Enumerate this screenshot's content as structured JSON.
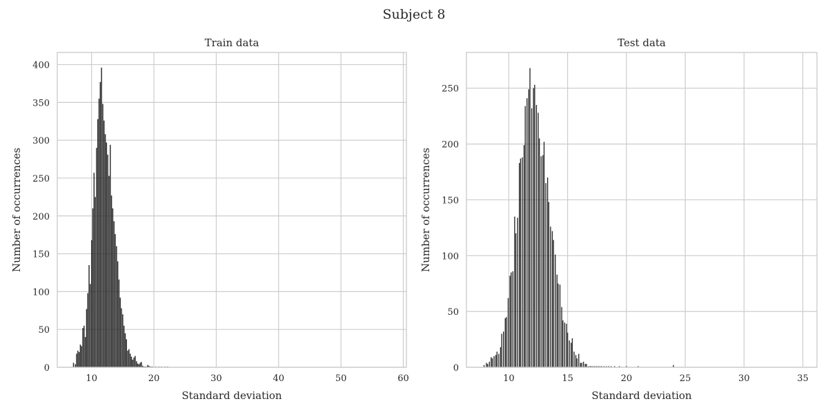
{
  "figure": {
    "title": "Subject 8"
  },
  "chart_data": [
    {
      "type": "bar",
      "title": "Train data",
      "xlabel": "Standard deviation",
      "ylabel": "Number of occurrences",
      "xlim": [
        4.5,
        60.5
      ],
      "ylim": [
        0,
        416
      ],
      "xticks": [
        10,
        20,
        30,
        40,
        50,
        60
      ],
      "yticks": [
        0,
        50,
        100,
        150,
        200,
        250,
        300,
        350,
        400
      ],
      "grid": true,
      "bar_width": 0.16,
      "x": [
        7.1,
        7.4,
        7.6,
        7.8,
        8.0,
        8.2,
        8.4,
        8.6,
        8.8,
        9.0,
        9.2,
        9.4,
        9.6,
        9.8,
        10.0,
        10.2,
        10.4,
        10.6,
        10.8,
        11.0,
        11.2,
        11.4,
        11.6,
        11.8,
        12.0,
        12.2,
        12.4,
        12.6,
        12.8,
        13.0,
        13.2,
        13.4,
        13.6,
        13.8,
        14.0,
        14.2,
        14.4,
        14.6,
        14.8,
        15.0,
        15.2,
        15.4,
        15.6,
        15.8,
        16.0,
        16.2,
        16.4,
        16.6,
        16.8,
        17.0,
        17.2,
        17.4,
        17.6,
        17.8,
        18.0,
        18.2,
        18.4,
        18.6,
        18.8,
        19.0,
        19.2,
        19.4,
        19.6,
        19.8,
        20.3,
        20.8,
        21.2,
        21.8,
        22.2
      ],
      "values": [
        6,
        4,
        18,
        22,
        20,
        30,
        28,
        52,
        55,
        40,
        77,
        98,
        135,
        110,
        168,
        210,
        257,
        225,
        290,
        328,
        355,
        377,
        396,
        348,
        326,
        308,
        297,
        281,
        253,
        294,
        227,
        210,
        193,
        176,
        160,
        140,
        116,
        92,
        78,
        70,
        55,
        45,
        37,
        22,
        24,
        18,
        14,
        10,
        13,
        15,
        8,
        5,
        4,
        6,
        7,
        2,
        1,
        1,
        1,
        3,
        2,
        1,
        1,
        1,
        1,
        1,
        1,
        1,
        1
      ]
    },
    {
      "type": "bar",
      "title": "Test data",
      "xlabel": "Standard deviation",
      "ylabel": "Number of occurrences",
      "xlim": [
        6.4,
        36.2
      ],
      "ylim": [
        0,
        282
      ],
      "xticks": [
        10,
        15,
        20,
        25,
        30,
        35
      ],
      "yticks": [
        0,
        50,
        100,
        150,
        200,
        250
      ],
      "grid": true,
      "bar_width": 0.08,
      "x": [
        7.9,
        8.1,
        8.2,
        8.35,
        8.5,
        8.6,
        8.75,
        8.9,
        9.0,
        9.15,
        9.3,
        9.4,
        9.55,
        9.7,
        9.8,
        9.95,
        10.1,
        10.2,
        10.35,
        10.5,
        10.6,
        10.75,
        10.9,
        11.0,
        11.15,
        11.3,
        11.4,
        11.55,
        11.7,
        11.8,
        11.95,
        12.1,
        12.2,
        12.35,
        12.5,
        12.6,
        12.75,
        12.9,
        13.0,
        13.15,
        13.3,
        13.4,
        13.55,
        13.7,
        13.8,
        13.95,
        14.1,
        14.2,
        14.35,
        14.5,
        14.6,
        14.75,
        14.9,
        15.0,
        15.15,
        15.3,
        15.4,
        15.55,
        15.7,
        15.8,
        15.95,
        16.1,
        16.2,
        16.35,
        16.5,
        16.6,
        16.75,
        16.9,
        17.0,
        17.15,
        17.3,
        17.45,
        17.6,
        17.75,
        17.9,
        18.1,
        18.3,
        18.5,
        18.7,
        19.0,
        19.4,
        20.0,
        21.0,
        24.0
      ],
      "values": [
        2,
        4,
        3,
        5,
        9,
        8,
        10,
        11,
        14,
        12,
        18,
        30,
        32,
        44,
        45,
        62,
        82,
        85,
        86,
        135,
        120,
        134,
        183,
        187,
        188,
        199,
        234,
        241,
        249,
        268,
        232,
        250,
        253,
        235,
        228,
        205,
        189,
        190,
        202,
        165,
        170,
        148,
        126,
        122,
        114,
        101,
        83,
        75,
        74,
        54,
        42,
        40,
        39,
        31,
        24,
        22,
        26,
        14,
        11,
        8,
        12,
        4,
        4,
        5,
        3,
        3,
        1,
        1,
        1,
        1,
        1,
        1,
        1,
        1,
        1,
        1,
        1,
        1,
        1,
        1,
        1,
        1,
        1,
        2
      ]
    }
  ]
}
